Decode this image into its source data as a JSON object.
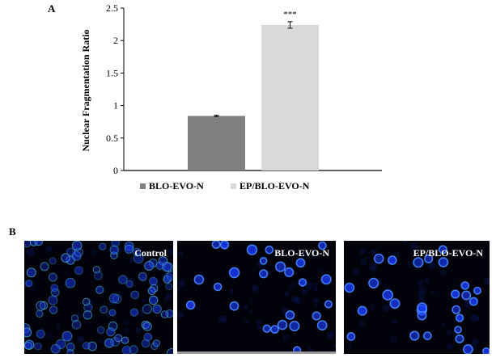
{
  "panels": {
    "a_label": "A",
    "b_label": "B"
  },
  "chart_data": {
    "type": "bar",
    "categories": [
      "BLO-EVO-N",
      "EP/BLO-EVO-N"
    ],
    "values": [
      0.84,
      2.24
    ],
    "errors": [
      0.01,
      0.05
    ],
    "significance": [
      "",
      "***"
    ],
    "colors": [
      "#808080",
      "#d9d9d9"
    ],
    "xlabel": "",
    "ylabel": "Nuclear  Fragmentation Ratio",
    "ylim": [
      0,
      2.5
    ],
    "yticks": [
      "0",
      "0.5",
      "1",
      "1.5",
      "2",
      "2.5"
    ],
    "legend": [
      "BLO-EVO-N",
      "EP/BLO-EVO-N"
    ],
    "legend_position": "bottom",
    "grid": false
  },
  "micrographs": [
    {
      "label": "Control",
      "stain_color": "#1a3cff",
      "ring_color": "#4fb0c8"
    },
    {
      "label": "BLO-EVO-N",
      "stain_color": "#1a3cff",
      "ring_color": "#4a86ff"
    },
    {
      "label": "EP/BLO-EVO-N",
      "stain_color": "#1a3cff",
      "ring_color": "#4a86ff"
    }
  ]
}
